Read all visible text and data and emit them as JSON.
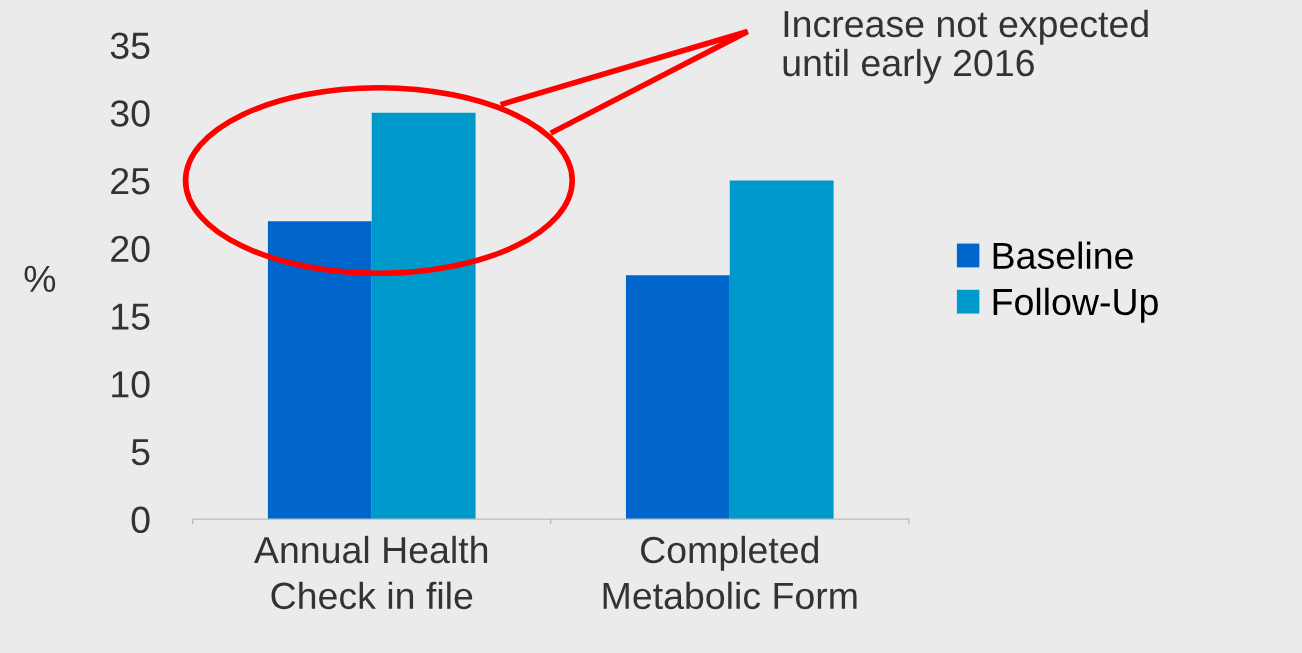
{
  "chart_data": {
    "type": "bar",
    "ylabel": "%",
    "categories": [
      "Annual Health\nCheck in file",
      "Completed\nMetabolic Form"
    ],
    "series": [
      {
        "name": "Baseline",
        "color": "#0066cc",
        "values": [
          22,
          18
        ]
      },
      {
        "name": "Follow-Up",
        "color": "#0099cc",
        "values": [
          30,
          25
        ]
      }
    ],
    "ylim": [
      0,
      35
    ],
    "yticks": [
      0,
      5,
      10,
      15,
      20,
      25,
      30,
      35
    ],
    "grid": false,
    "legend": "right",
    "annotations": [
      "Increase not expected\nuntil early 2016"
    ]
  }
}
